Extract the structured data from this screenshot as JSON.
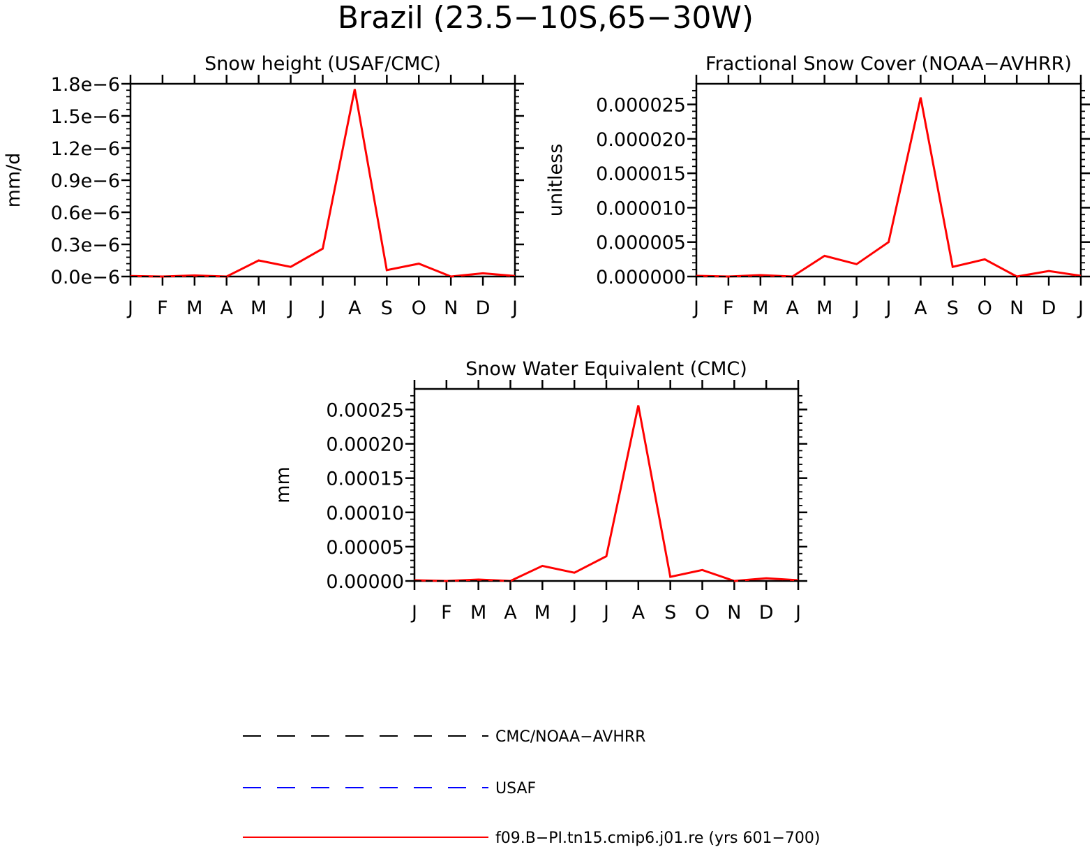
{
  "figure": {
    "title": "Brazil (23.5−10S,65−30W)"
  },
  "colors": {
    "model": "#ff0000",
    "obs_cmc": "#000000",
    "obs_usaf": "#0000ff"
  },
  "legend": {
    "placement": "bottom",
    "entries": [
      {
        "label": "CMC/NOAA−AVHRR",
        "style": "dashed",
        "color": "#000000"
      },
      {
        "label": "USAF",
        "style": "dashed",
        "color": "#0000ff"
      },
      {
        "label": "f09.B−PI.tn15.cmip6.j01.re (yrs 601−700)",
        "style": "solid",
        "color": "#ff0000"
      }
    ]
  },
  "chart_data": [
    {
      "type": "line",
      "title": "Snow height (USAF/CMC)",
      "ylabel": "mm/d",
      "xlabel": "",
      "categories": [
        "J",
        "F",
        "M",
        "A",
        "M",
        "J",
        "J",
        "A",
        "S",
        "O",
        "N",
        "D",
        "J"
      ],
      "ylim": [
        0,
        1.8e-06
      ],
      "yticks": [
        0,
        3e-07,
        6e-07,
        9e-07,
        1.2e-06,
        1.5e-06,
        1.8e-06
      ],
      "yticklabels": [
        "0.0e−6",
        "0.3e−6",
        "0.6e−6",
        "0.9e−6",
        "1.2e−6",
        "1.5e−6",
        "1.8e−6"
      ],
      "grid": false,
      "series": [
        {
          "name": "f09.B−PI.tn15.cmip6.j01.re (yrs 601−700)",
          "style": "solid",
          "color": "#ff0000",
          "values": [
            5e-09,
            0.0,
            1e-08,
            0.0,
            1.5e-07,
            9e-08,
            2.6e-07,
            1.75e-06,
            6e-08,
            1.2e-07,
            0.0,
            3e-08,
            5e-09
          ]
        },
        {
          "name": "CMC/NOAA−AVHRR",
          "style": "dashed",
          "color": "#000000",
          "values": [
            0,
            0,
            0,
            0,
            0,
            0,
            0,
            0,
            0,
            0,
            0,
            0,
            0
          ]
        }
      ]
    },
    {
      "type": "line",
      "title": "Fractional Snow Cover (NOAA−AVHRR)",
      "ylabel": "unitless",
      "xlabel": "",
      "categories": [
        "J",
        "F",
        "M",
        "A",
        "M",
        "J",
        "J",
        "A",
        "S",
        "O",
        "N",
        "D",
        "J"
      ],
      "ylim": [
        0,
        2.8e-05
      ],
      "yticks": [
        0,
        5e-06,
        1e-05,
        1.5e-05,
        2e-05,
        2.5e-05
      ],
      "yticklabels": [
        "0.000000",
        "0.000005",
        "0.000010",
        "0.000015",
        "0.000020",
        "0.000025"
      ],
      "grid": false,
      "series": [
        {
          "name": "f09.B−PI.tn15.cmip6.j01.re (yrs 601−700)",
          "style": "solid",
          "color": "#ff0000",
          "values": [
            1e-07,
            0.0,
            2e-07,
            0.0,
            3e-06,
            1.8e-06,
            5e-06,
            2.6e-05,
            1.4e-06,
            2.5e-06,
            0.0,
            8e-07,
            1e-07
          ]
        },
        {
          "name": "CMC/NOAA−AVHRR",
          "style": "dashed",
          "color": "#000000",
          "values": [
            0,
            0,
            0,
            0,
            0,
            0,
            0,
            0,
            0,
            0,
            0,
            0,
            0
          ]
        }
      ]
    },
    {
      "type": "line",
      "title": "Snow Water Equivalent (CMC)",
      "ylabel": "mm",
      "xlabel": "",
      "categories": [
        "J",
        "F",
        "M",
        "A",
        "M",
        "J",
        "J",
        "A",
        "S",
        "O",
        "N",
        "D",
        "J"
      ],
      "ylim": [
        0,
        0.00028
      ],
      "yticks": [
        0,
        5e-05,
        0.0001,
        0.00015,
        0.0002,
        0.00025
      ],
      "yticklabels": [
        "0.00000",
        "0.00005",
        "0.00010",
        "0.00015",
        "0.00020",
        "0.00025"
      ],
      "grid": false,
      "series": [
        {
          "name": "f09.B−PI.tn15.cmip6.j01.re (yrs 601−700)",
          "style": "solid",
          "color": "#ff0000",
          "values": [
            1e-06,
            0.0,
            2e-06,
            0.0,
            2.2e-05,
            1.2e-05,
            3.6e-05,
            0.000256,
            6e-06,
            1.6e-05,
            0.0,
            4e-06,
            1e-06
          ]
        },
        {
          "name": "CMC/NOAA−AVHRR",
          "style": "dashed",
          "color": "#000000",
          "values": [
            0,
            0,
            0,
            0,
            0,
            0,
            0,
            0,
            0,
            0,
            0,
            0,
            0
          ]
        }
      ]
    }
  ]
}
